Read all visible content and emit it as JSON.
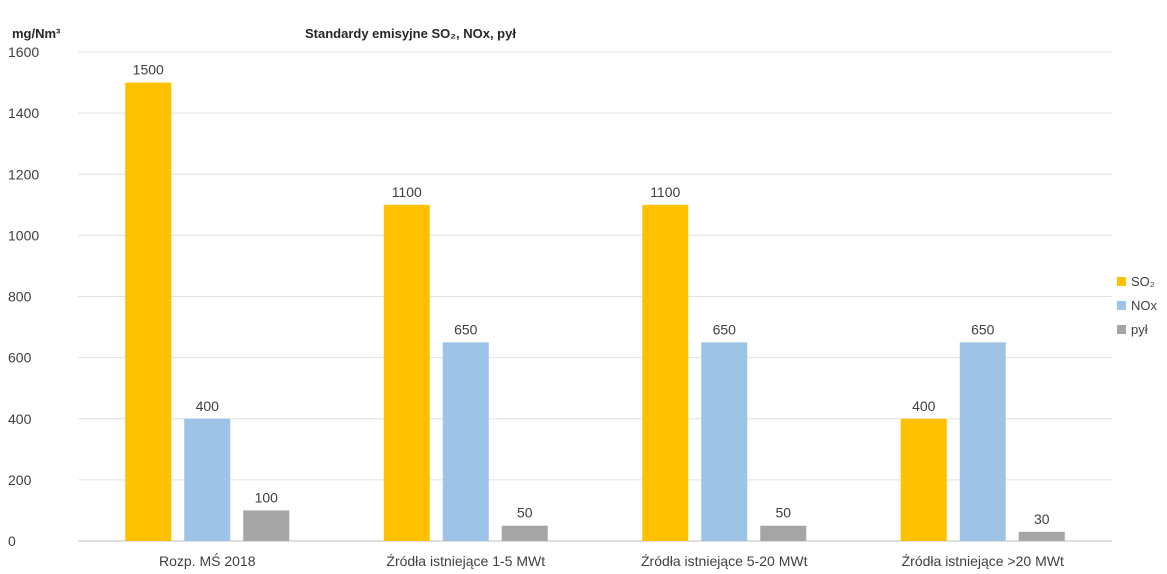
{
  "chart_data": {
    "type": "bar",
    "title": "Standardy emisyjne SO₂, NOx, pył",
    "ylabel": "mg/Nm³",
    "xlabel": "",
    "ylim": [
      0,
      1600
    ],
    "yticks": [
      0,
      200,
      400,
      600,
      800,
      1000,
      1200,
      1400,
      1600
    ],
    "ytick_labels": [
      "0",
      "200",
      "400",
      "600",
      "800",
      "1000",
      "1200",
      "1400",
      "1600"
    ],
    "grid": true,
    "legend_position": "right",
    "categories": [
      "Rozp. MŚ 2018",
      "Źródła istniejące 1-5 MWt",
      "Źródła istniejące 5-20 MWt",
      "Źródła istniejące >20 MWt"
    ],
    "series": [
      {
        "name": "SO₂",
        "color": "#FFC000",
        "values": [
          1500,
          1100,
          1100,
          400
        ],
        "labels": [
          "1500",
          "1100",
          "1100",
          "400"
        ]
      },
      {
        "name": "NOx",
        "color": "#9DC3E6",
        "values": [
          400,
          650,
          650,
          650
        ],
        "labels": [
          "400",
          "650",
          "650",
          "650"
        ]
      },
      {
        "name": "pył",
        "color": "#A5A5A5",
        "values": [
          100,
          50,
          50,
          30
        ],
        "labels": [
          "100",
          "50",
          "50",
          "30"
        ]
      }
    ]
  }
}
